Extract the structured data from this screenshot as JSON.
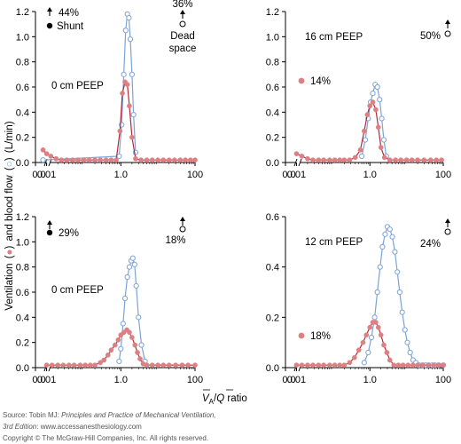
{
  "figure": {
    "ylabel_main": "Ventilation",
    "ylabel_mid": "and blood flow",
    "ylabel_units": "(L/min)",
    "xlabel_v": "V",
    "xlabel_sub": "A",
    "xlabel_slash": "/",
    "xlabel_q": "Q",
    "xlabel_rest": " ratio",
    "source_label": "Source: Tobin MJ: ",
    "source_title": "Principles and Practice of Mechanical Ventilation,",
    "edition": "3rd Edition",
    "edition_suffix": ": www.accessanesthesiology.com",
    "copyright": "Copyright © The McGraw-Hill Companies, Inc. All rights reserved.",
    "colors": {
      "ventilation": "#e07f82",
      "ventilation_line": "#b0293a",
      "blood_flow": "#7ba3d8",
      "axis": "#000000"
    },
    "icons": [
      "up-arrow-icon",
      "filled-circle-icon",
      "open-circle-icon"
    ]
  },
  "chart_data": [
    {
      "type": "line",
      "panel": "top-left",
      "xscale": "log",
      "xticks": [
        "0.0",
        "0.01",
        "1.0",
        "100"
      ],
      "xlim": [
        0.005,
        100
      ],
      "ylim": [
        0,
        1.2
      ],
      "yticks": [
        "0.0",
        "0.2",
        "0.4",
        "0.6",
        "0.8",
        "1.0",
        "1.2"
      ],
      "label": "0 cm PEEP",
      "shunt": {
        "value": "44%",
        "label": "Shunt"
      },
      "dead_space": {
        "value": "36%",
        "label1": "Dead",
        "label2": "space"
      },
      "series": [
        {
          "role": "ventilation",
          "points": [
            [
              0.008,
              0.1
            ],
            [
              0.01,
              0.07
            ],
            [
              0.013,
              0.05
            ],
            [
              0.018,
              0.03
            ],
            [
              0.025,
              0.02
            ],
            [
              0.035,
              0.02
            ],
            [
              0.05,
              0.02
            ],
            [
              0.07,
              0.02
            ],
            [
              0.1,
              0.02
            ],
            [
              0.14,
              0.02
            ],
            [
              0.2,
              0.02
            ],
            [
              0.28,
              0.02
            ],
            [
              0.4,
              0.02
            ],
            [
              0.55,
              0.02
            ],
            [
              0.75,
              0.02
            ],
            [
              0.95,
              0.25
            ],
            [
              1.1,
              0.55
            ],
            [
              1.3,
              0.64
            ],
            [
              1.5,
              0.62
            ],
            [
              1.7,
              0.45
            ],
            [
              2.0,
              0.2
            ],
            [
              2.5,
              0.03
            ],
            [
              3.5,
              0.02
            ],
            [
              5,
              0.02
            ],
            [
              7,
              0.02
            ],
            [
              10,
              0.02
            ],
            [
              14,
              0.02
            ],
            [
              20,
              0.02
            ],
            [
              28,
              0.02
            ],
            [
              40,
              0.02
            ],
            [
              55,
              0.02
            ],
            [
              75,
              0.02
            ],
            [
              100,
              0.02
            ]
          ]
        },
        {
          "role": "blood_flow",
          "points": [
            [
              0.008,
              0.02
            ],
            [
              0.9,
              0.05
            ],
            [
              1.05,
              0.3
            ],
            [
              1.2,
              0.7
            ],
            [
              1.35,
              1.05
            ],
            [
              1.5,
              1.18
            ],
            [
              1.65,
              1.15
            ],
            [
              1.8,
              0.98
            ],
            [
              2.0,
              0.7
            ],
            [
              2.2,
              0.38
            ],
            [
              2.5,
              0.08
            ]
          ]
        }
      ]
    },
    {
      "type": "line",
      "panel": "top-right",
      "xscale": "log",
      "xticks": [
        "0.0",
        "0.01",
        "1.0",
        "100"
      ],
      "xlim": [
        0.005,
        100
      ],
      "ylim": [
        0,
        1.2
      ],
      "yticks": [
        "0.0",
        "0.2",
        "0.4",
        "0.6",
        "0.8",
        "1.0",
        "1.2"
      ],
      "label": "16 cm PEEP",
      "shunt": {
        "value": "14%"
      },
      "dead_space": {
        "value": "50%"
      },
      "series": [
        {
          "role": "ventilation",
          "points": [
            [
              0.01,
              0.07
            ],
            [
              0.014,
              0.05
            ],
            [
              0.02,
              0.03
            ],
            [
              0.028,
              0.02
            ],
            [
              0.04,
              0.02
            ],
            [
              0.055,
              0.02
            ],
            [
              0.08,
              0.02
            ],
            [
              0.11,
              0.02
            ],
            [
              0.15,
              0.02
            ],
            [
              0.2,
              0.02
            ],
            [
              0.28,
              0.02
            ],
            [
              0.4,
              0.04
            ],
            [
              0.55,
              0.1
            ],
            [
              0.7,
              0.25
            ],
            [
              0.85,
              0.38
            ],
            [
              1.0,
              0.45
            ],
            [
              1.2,
              0.48
            ],
            [
              1.45,
              0.42
            ],
            [
              1.7,
              0.28
            ],
            [
              2.0,
              0.12
            ],
            [
              2.5,
              0.04
            ],
            [
              3.5,
              0.02
            ],
            [
              5,
              0.02
            ],
            [
              7,
              0.02
            ],
            [
              10,
              0.02
            ],
            [
              14,
              0.02
            ],
            [
              20,
              0.02
            ],
            [
              30,
              0.02
            ],
            [
              45,
              0.02
            ],
            [
              65,
              0.02
            ],
            [
              90,
              0.02
            ]
          ]
        },
        {
          "role": "blood_flow",
          "points": [
            [
              0.6,
              0.05
            ],
            [
              0.75,
              0.18
            ],
            [
              0.9,
              0.35
            ],
            [
              1.05,
              0.48
            ],
            [
              1.2,
              0.55
            ],
            [
              1.4,
              0.62
            ],
            [
              1.6,
              0.6
            ],
            [
              1.85,
              0.5
            ],
            [
              2.1,
              0.35
            ],
            [
              2.4,
              0.18
            ],
            [
              2.8,
              0.05
            ]
          ]
        }
      ]
    },
    {
      "type": "line",
      "panel": "bottom-left",
      "xscale": "log",
      "xticks": [
        "0.0",
        "0.01",
        "1.0",
        "100"
      ],
      "xlim": [
        0.005,
        100
      ],
      "ylim": [
        0,
        1.2
      ],
      "yticks": [
        "0.0",
        "0.2",
        "0.4",
        "0.6",
        "0.8",
        "1.0",
        "1.2"
      ],
      "label": "0 cm PEEP",
      "shunt": {
        "value": "29%"
      },
      "dead_space": {
        "value": "18%"
      },
      "series": [
        {
          "role": "ventilation",
          "points": [
            [
              0.01,
              0.02
            ],
            [
              0.014,
              0.02
            ],
            [
              0.02,
              0.02
            ],
            [
              0.028,
              0.02
            ],
            [
              0.04,
              0.02
            ],
            [
              0.055,
              0.02
            ],
            [
              0.08,
              0.02
            ],
            [
              0.11,
              0.02
            ],
            [
              0.15,
              0.02
            ],
            [
              0.2,
              0.02
            ],
            [
              0.28,
              0.04
            ],
            [
              0.35,
              0.06
            ],
            [
              0.45,
              0.1
            ],
            [
              0.55,
              0.14
            ],
            [
              0.7,
              0.18
            ],
            [
              0.85,
              0.22
            ],
            [
              1.0,
              0.26
            ],
            [
              1.2,
              0.28
            ],
            [
              1.45,
              0.3
            ],
            [
              1.7,
              0.28
            ],
            [
              2.0,
              0.24
            ],
            [
              2.4,
              0.18
            ],
            [
              2.8,
              0.12
            ],
            [
              3.3,
              0.07
            ],
            [
              4,
              0.03
            ],
            [
              5,
              0.02
            ],
            [
              7,
              0.02
            ],
            [
              10,
              0.02
            ],
            [
              14,
              0.02
            ],
            [
              20,
              0.02
            ],
            [
              30,
              0.02
            ],
            [
              45,
              0.02
            ],
            [
              65,
              0.02
            ],
            [
              100,
              0.02
            ]
          ]
        },
        {
          "role": "blood_flow",
          "points": [
            [
              0.9,
              0.05
            ],
            [
              1.0,
              0.15
            ],
            [
              1.15,
              0.35
            ],
            [
              1.3,
              0.55
            ],
            [
              1.5,
              0.72
            ],
            [
              1.7,
              0.8
            ],
            [
              1.9,
              0.85
            ],
            [
              2.1,
              0.87
            ],
            [
              2.35,
              0.82
            ],
            [
              2.6,
              0.65
            ],
            [
              3.0,
              0.4
            ],
            [
              3.6,
              0.18
            ],
            [
              4.5,
              0.05
            ]
          ]
        }
      ]
    },
    {
      "type": "line",
      "panel": "bottom-right",
      "xscale": "log",
      "xticks": [
        "0.0",
        "0.01",
        "1.0",
        "100"
      ],
      "xlim": [
        0.005,
        100
      ],
      "ylim": [
        0,
        0.6
      ],
      "yticks": [
        "0.0",
        "0.2",
        "0.4",
        "0.6"
      ],
      "label": "12 cm PEEP",
      "shunt": {
        "value": "18%"
      },
      "dead_space": {
        "value": "24%"
      },
      "series": [
        {
          "role": "ventilation",
          "points": [
            [
              0.01,
              0.01
            ],
            [
              0.014,
              0.01
            ],
            [
              0.02,
              0.01
            ],
            [
              0.028,
              0.01
            ],
            [
              0.04,
              0.01
            ],
            [
              0.055,
              0.01
            ],
            [
              0.08,
              0.01
            ],
            [
              0.11,
              0.01
            ],
            [
              0.15,
              0.01
            ],
            [
              0.2,
              0.01
            ],
            [
              0.28,
              0.02
            ],
            [
              0.38,
              0.04
            ],
            [
              0.5,
              0.07
            ],
            [
              0.65,
              0.1
            ],
            [
              0.8,
              0.13
            ],
            [
              1.0,
              0.16
            ],
            [
              1.2,
              0.18
            ],
            [
              1.45,
              0.18
            ],
            [
              1.7,
              0.16
            ],
            [
              2.0,
              0.13
            ],
            [
              2.4,
              0.09
            ],
            [
              2.9,
              0.06
            ],
            [
              3.5,
              0.03
            ],
            [
              4.5,
              0.01
            ],
            [
              6,
              0.01
            ],
            [
              8,
              0.01
            ],
            [
              11,
              0.01
            ],
            [
              15,
              0.01
            ],
            [
              20,
              0.01
            ],
            [
              28,
              0.01
            ],
            [
              40,
              0.01
            ],
            [
              55,
              0.01
            ],
            [
              75,
              0.01
            ],
            [
              100,
              0.01
            ]
          ]
        },
        {
          "role": "blood_flow",
          "points": [
            [
              0.7,
              0.02
            ],
            [
              0.9,
              0.06
            ],
            [
              1.1,
              0.12
            ],
            [
              1.35,
              0.2
            ],
            [
              1.6,
              0.3
            ],
            [
              1.9,
              0.4
            ],
            [
              2.2,
              0.48
            ],
            [
              2.6,
              0.53
            ],
            [
              3.0,
              0.56
            ],
            [
              3.5,
              0.55
            ],
            [
              4.1,
              0.52
            ],
            [
              4.8,
              0.46
            ],
            [
              5.6,
              0.38
            ],
            [
              6.5,
              0.3
            ],
            [
              7.6,
              0.22
            ],
            [
              9,
              0.15
            ],
            [
              10.5,
              0.1
            ],
            [
              12.5,
              0.06
            ],
            [
              15,
              0.03
            ],
            [
              18,
              0.02
            ],
            [
              22,
              0.01
            ],
            [
              27,
              0.01
            ],
            [
              33,
              0.01
            ],
            [
              40,
              0.01
            ],
            [
              50,
              0.01
            ],
            [
              60,
              0.01
            ],
            [
              75,
              0.01
            ],
            [
              100,
              0.01
            ]
          ]
        }
      ]
    }
  ]
}
